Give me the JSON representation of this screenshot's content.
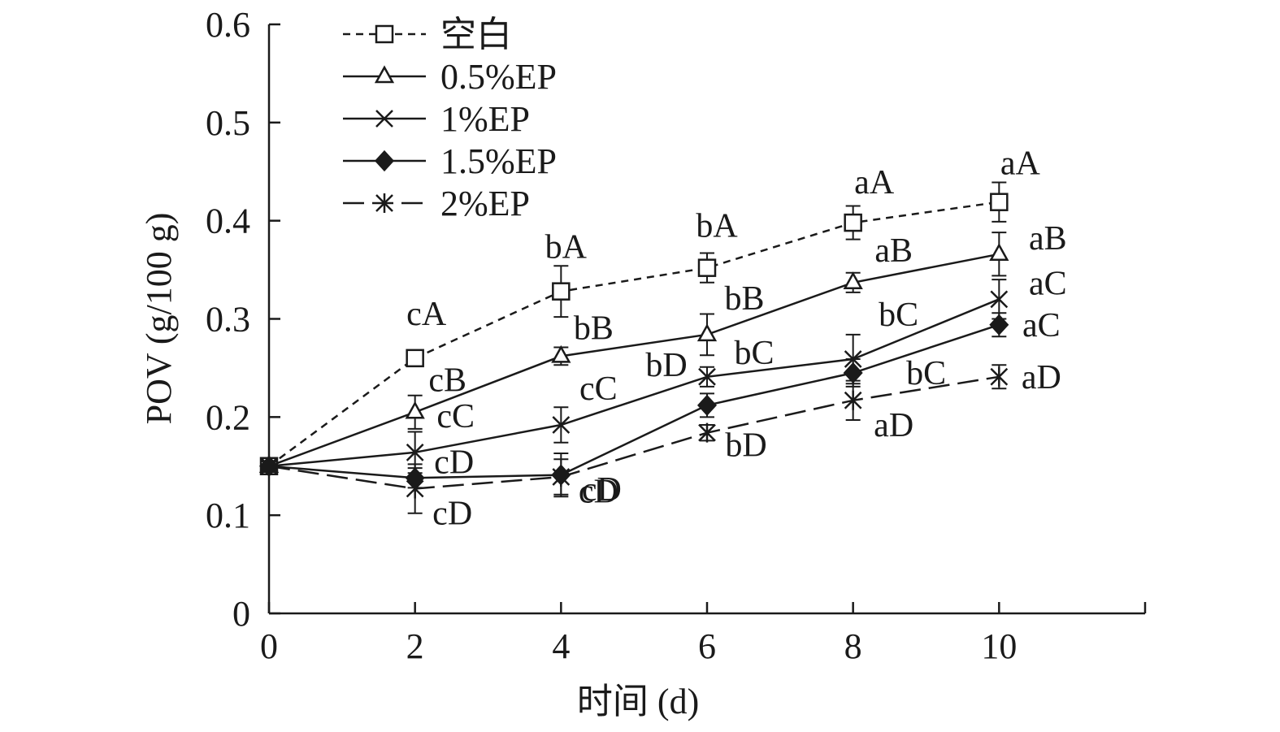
{
  "chart_data": {
    "type": "line",
    "title": "",
    "xlabel": "时间 (d)",
    "ylabel": "POV (g/100 g)",
    "x": [
      0,
      2,
      4,
      6,
      8,
      10
    ],
    "xticks": [
      "0",
      "2",
      "4",
      "6",
      "8",
      "10"
    ],
    "xlim": [
      0,
      12
    ],
    "yticks": [
      "0",
      "0.1",
      "0.2",
      "0.3",
      "0.4",
      "0.5",
      "0.6"
    ],
    "ylim": [
      0,
      0.6
    ],
    "grid": false,
    "legend_position": "top-left",
    "series": [
      {
        "name": "空白",
        "marker": "open-square",
        "line_style": "short-dash",
        "values": [
          0.15,
          0.26,
          0.328,
          0.352,
          0.398,
          0.419
        ],
        "errors": [
          0.005,
          0.008,
          0.026,
          0.015,
          0.017,
          0.02
        ],
        "labels": [
          "",
          "cA",
          "bA",
          "bA",
          "aA",
          "aA"
        ]
      },
      {
        "name": "0.5%EP",
        "marker": "open-triangle",
        "line_style": "solid",
        "values": [
          0.15,
          0.205,
          0.262,
          0.284,
          0.337,
          0.366
        ],
        "errors": [
          0.005,
          0.017,
          0.009,
          0.021,
          0.01,
          0.022
        ],
        "labels": [
          "",
          "cB",
          "bB",
          "bB",
          "aB",
          "aB"
        ]
      },
      {
        "name": "1%EP",
        "marker": "x-cross",
        "line_style": "solid",
        "values": [
          0.15,
          0.164,
          0.192,
          0.241,
          0.259,
          0.32
        ],
        "errors": [
          0.005,
          0.021,
          0.018,
          0.01,
          0.025,
          0.02
        ],
        "labels": [
          "",
          "cC",
          "cC",
          "bC",
          "bC",
          "aC"
        ]
      },
      {
        "name": "1.5%EP",
        "marker": "filled-diamond",
        "line_style": "solid",
        "values": [
          0.15,
          0.138,
          0.141,
          0.212,
          0.245,
          0.294
        ],
        "errors": [
          0.005,
          0.01,
          0.022,
          0.012,
          0.014,
          0.012
        ],
        "labels": [
          "",
          "cD",
          "cD",
          "bD",
          "bC",
          "aC"
        ]
      },
      {
        "name": "2%EP",
        "marker": "asterisk",
        "line_style": "long-dash",
        "values": [
          0.15,
          0.127,
          0.139,
          0.184,
          0.217,
          0.241
        ],
        "errors": [
          0.005,
          0.025,
          0.018,
          0.008,
          0.02,
          0.012
        ],
        "labels": [
          "",
          "cD",
          "cD",
          "bD",
          "aD",
          "aD"
        ]
      }
    ]
  },
  "colors": {
    "ink": "#1a1a1a",
    "background": "#ffffff"
  }
}
